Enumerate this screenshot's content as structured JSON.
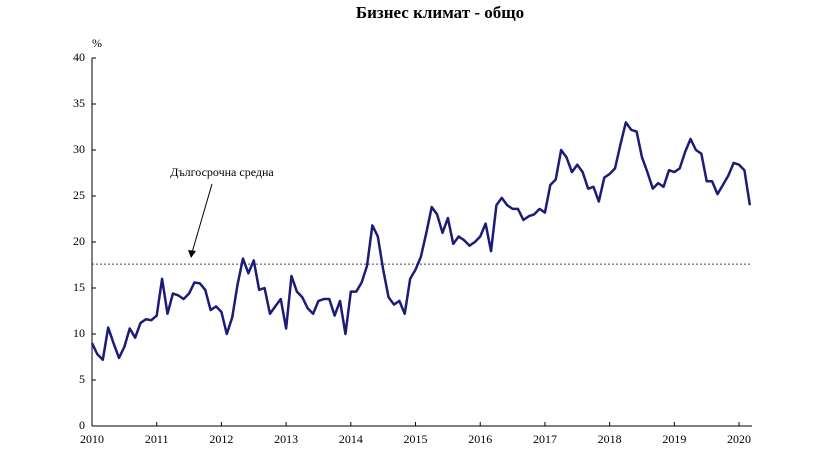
{
  "chart_data": {
    "type": "line",
    "title": "Бизнес климат - общо",
    "y_unit": "%",
    "x": [
      2010,
      2010.083,
      2010.167,
      2010.25,
      2010.333,
      2010.417,
      2010.5,
      2010.583,
      2010.667,
      2010.75,
      2010.833,
      2010.917,
      2011,
      2011.083,
      2011.167,
      2011.25,
      2011.333,
      2011.417,
      2011.5,
      2011.583,
      2011.667,
      2011.75,
      2011.833,
      2011.917,
      2012,
      2012.083,
      2012.167,
      2012.25,
      2012.333,
      2012.417,
      2012.5,
      2012.583,
      2012.667,
      2012.75,
      2012.833,
      2012.917,
      2013,
      2013.083,
      2013.167,
      2013.25,
      2013.333,
      2013.417,
      2013.5,
      2013.583,
      2013.667,
      2013.75,
      2013.833,
      2013.917,
      2014,
      2014.083,
      2014.167,
      2014.25,
      2014.333,
      2014.417,
      2014.5,
      2014.583,
      2014.667,
      2014.75,
      2014.833,
      2014.917,
      2015,
      2015.083,
      2015.167,
      2015.25,
      2015.333,
      2015.417,
      2015.5,
      2015.583,
      2015.667,
      2015.75,
      2015.833,
      2015.917,
      2016,
      2016.083,
      2016.167,
      2016.25,
      2016.333,
      2016.417,
      2016.5,
      2016.583,
      2016.667,
      2016.75,
      2016.833,
      2016.917,
      2017,
      2017.083,
      2017.167,
      2017.25,
      2017.333,
      2017.417,
      2017.5,
      2017.583,
      2017.667,
      2017.75,
      2017.833,
      2017.917,
      2018,
      2018.083,
      2018.167,
      2018.25,
      2018.333,
      2018.417,
      2018.5,
      2018.583,
      2018.667,
      2018.75,
      2018.833,
      2018.917,
      2019,
      2019.083,
      2019.167,
      2019.25,
      2019.333,
      2019.417,
      2019.5,
      2019.583,
      2019.667,
      2019.75,
      2019.833,
      2019.917,
      2020,
      2020.083,
      2020.167
    ],
    "series": [
      {
        "color": "#1c1c78",
        "values": [
          9.0,
          7.8,
          7.2,
          10.7,
          9.0,
          7.4,
          8.6,
          10.6,
          9.6,
          11.2,
          11.6,
          11.5,
          12.0,
          16.0,
          12.2,
          14.4,
          14.2,
          13.8,
          14.4,
          15.6,
          15.5,
          14.8,
          12.6,
          13.0,
          12.4,
          10.0,
          11.8,
          15.4,
          18.2,
          16.6,
          18.0,
          14.8,
          15.0,
          12.2,
          13.0,
          13.8,
          10.6,
          16.3,
          14.6,
          14.0,
          12.8,
          12.2,
          13.6,
          13.8,
          13.8,
          12.0,
          13.6,
          10.0,
          14.6,
          14.6,
          15.6,
          17.4,
          21.8,
          20.6,
          17.0,
          14.0,
          13.2,
          13.6,
          12.2,
          16.0,
          17.0,
          18.4,
          21.0,
          23.8,
          23.0,
          21.0,
          22.6,
          19.8,
          20.6,
          20.2,
          19.6,
          20.0,
          20.6,
          22.0,
          19.0,
          24.0,
          24.8,
          24.0,
          23.6,
          23.6,
          22.4,
          22.8,
          23.0,
          23.6,
          23.2,
          26.2,
          26.8,
          30.0,
          29.2,
          27.6,
          28.4,
          27.6,
          25.8,
          26.0,
          24.4,
          27.0,
          27.4,
          28.0,
          30.6,
          33.0,
          32.2,
          32.0,
          29.2,
          27.6,
          25.8,
          26.4,
          26.0,
          27.8,
          27.6,
          28.0,
          29.8,
          31.2,
          30.0,
          29.6,
          26.6,
          26.6,
          25.2,
          26.2,
          27.2,
          28.6,
          28.4,
          27.8,
          24.0
        ]
      }
    ],
    "reference_line": {
      "value": 17.6,
      "label": "Дългосрочна средна"
    },
    "xlim": [
      2010,
      2020.2
    ],
    "xticks": [
      2010,
      2011,
      2012,
      2013,
      2014,
      2015,
      2016,
      2017,
      2018,
      2019,
      2020
    ],
    "ylim": [
      0,
      40
    ],
    "yticks": [
      0,
      5,
      10,
      15,
      20,
      25,
      30,
      35,
      40
    ]
  }
}
